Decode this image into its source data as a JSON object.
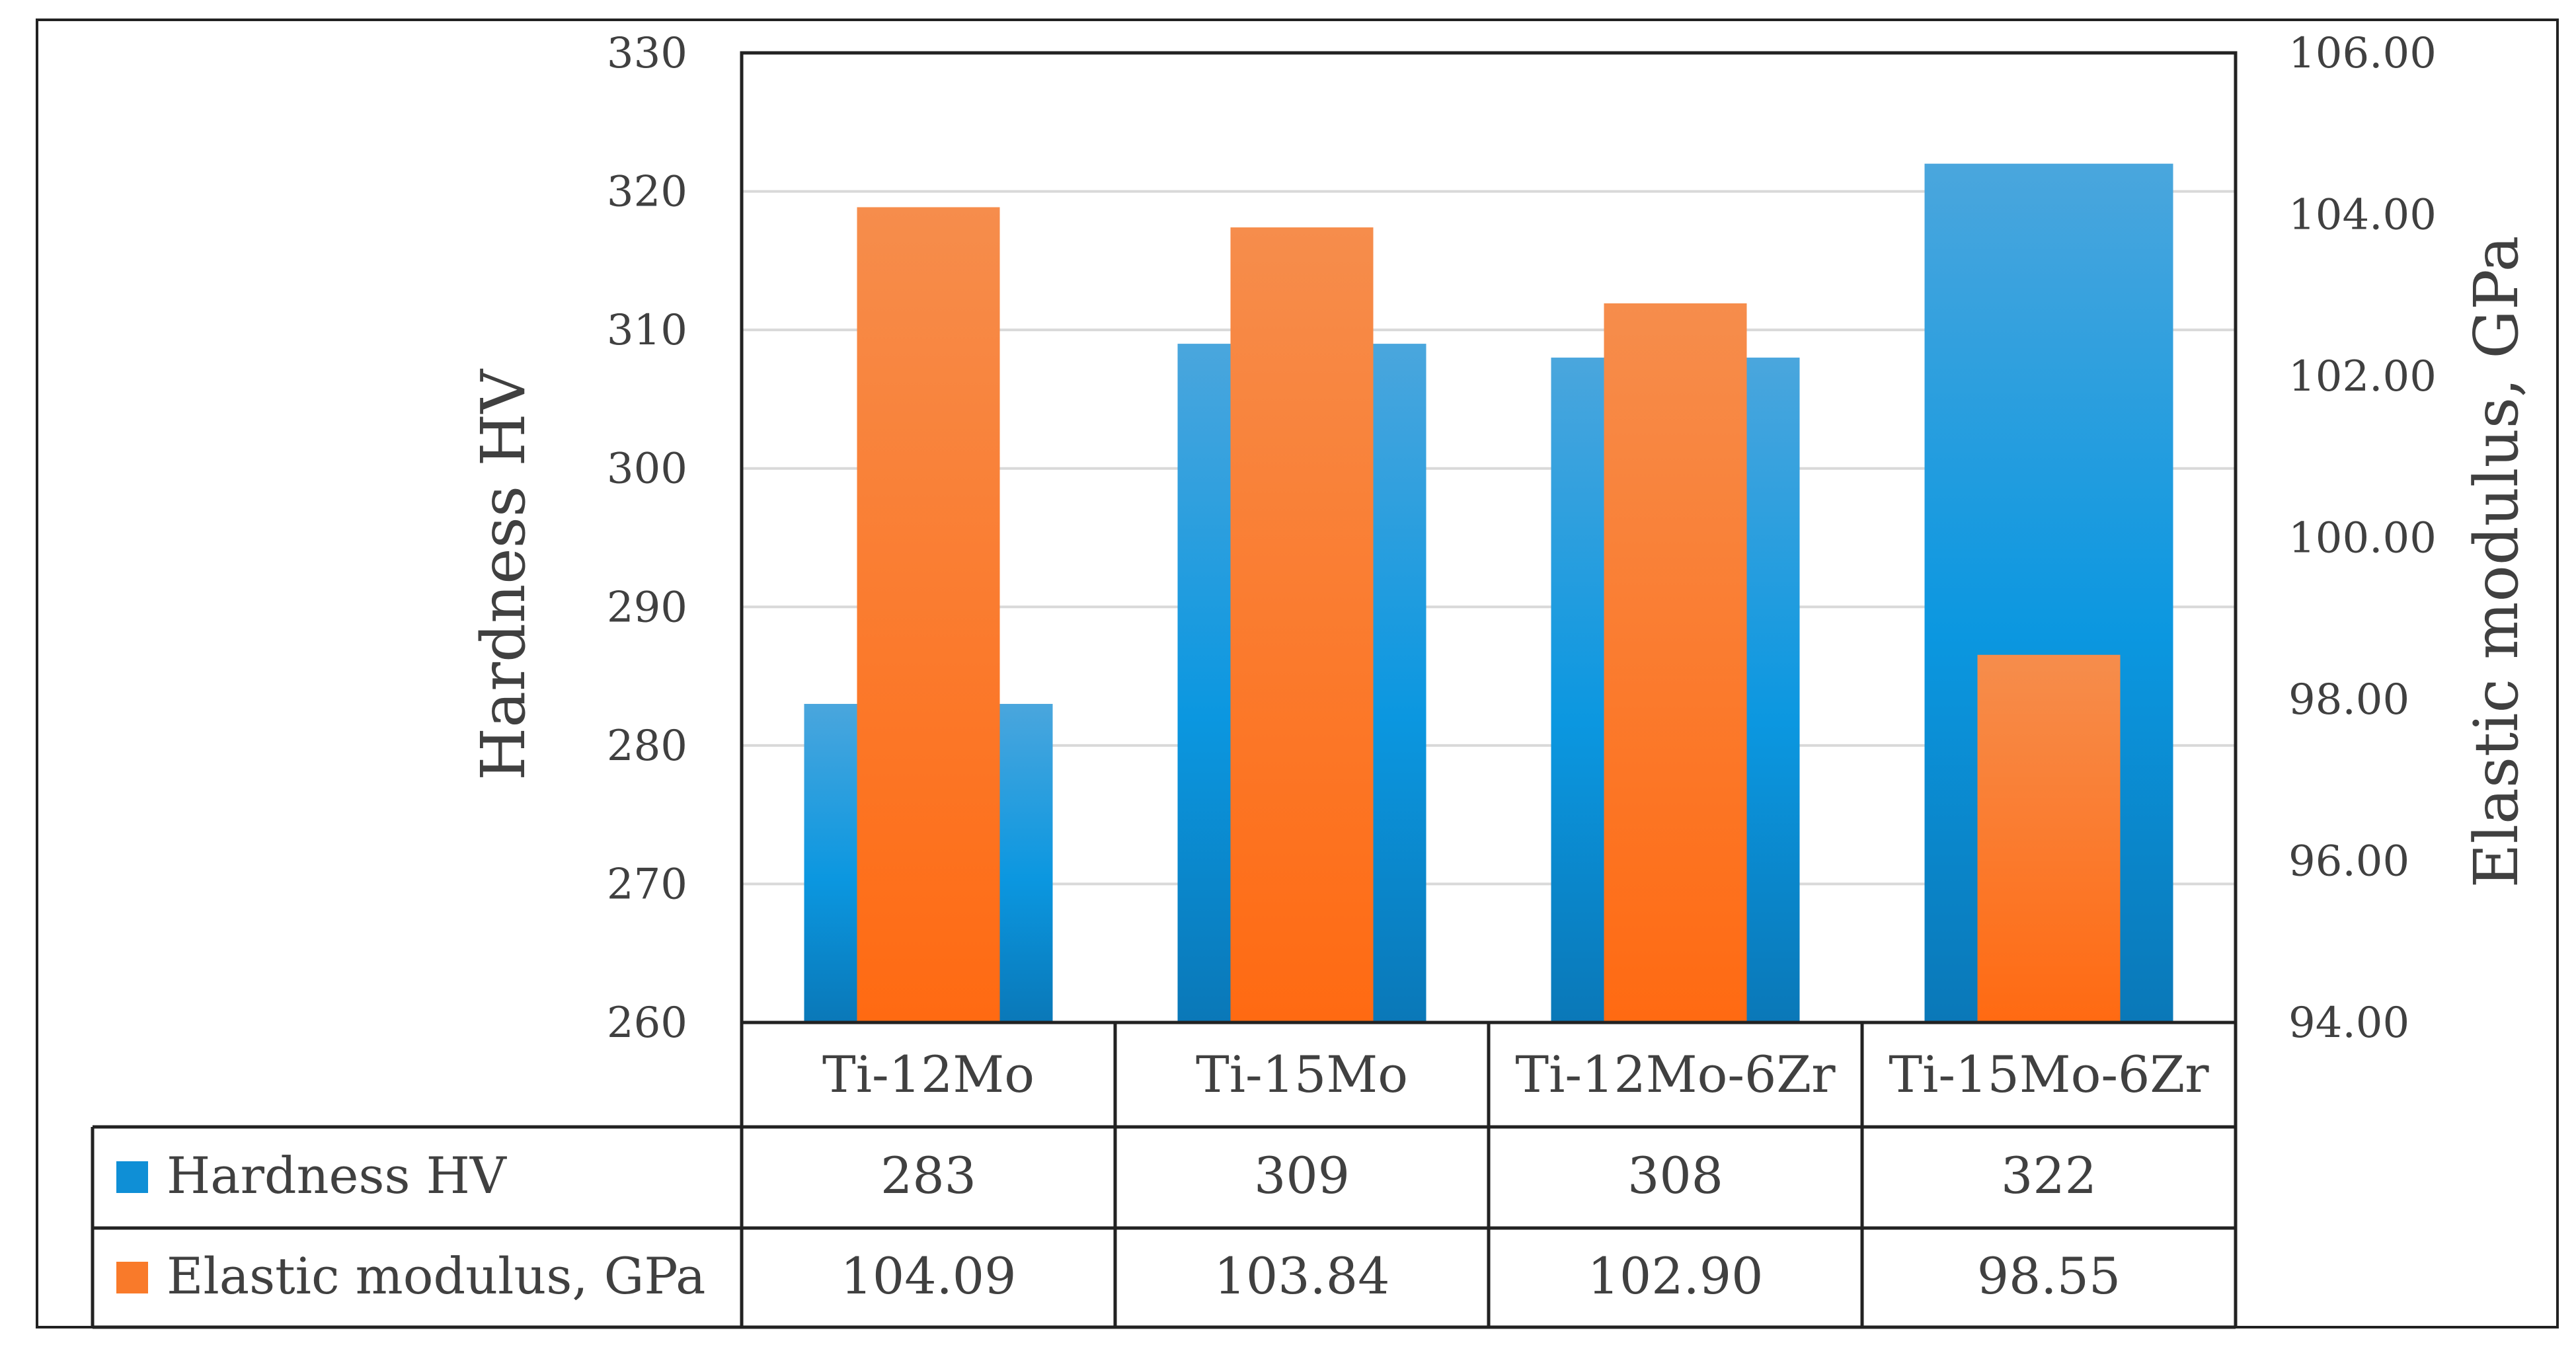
{
  "chart_data": {
    "type": "bar",
    "categories": [
      "Ti-12Mo",
      "Ti-15Mo",
      "Ti-12Mo-6Zr",
      "Ti-15Mo-6Zr"
    ],
    "series": [
      {
        "name": "Hardness HV",
        "axis": "left",
        "values": [
          283,
          309,
          308,
          322
        ],
        "display_values": [
          "283",
          "309",
          "308",
          "322"
        ],
        "color": "#0f8fd6"
      },
      {
        "name": "Elastic modulus, GPa",
        "axis": "right",
        "values": [
          104.09,
          103.84,
          102.9,
          98.55
        ],
        "display_values": [
          "104.09",
          "103.84",
          "102.90",
          "98.55"
        ],
        "color": "#f97a2a"
      }
    ],
    "ylabel": "Hardness HV",
    "y2label": "Elastic modulus, GPa",
    "ylim": [
      260,
      330
    ],
    "y2lim": [
      94,
      106
    ],
    "yticks": [
      "260",
      "270",
      "280",
      "290",
      "300",
      "310",
      "320",
      "330"
    ],
    "y2ticks": [
      "94.00",
      "96.00",
      "98.00",
      "100.00",
      "102.00",
      "104.00",
      "106.00"
    ],
    "grid": true,
    "legend": "data table below plot"
  }
}
